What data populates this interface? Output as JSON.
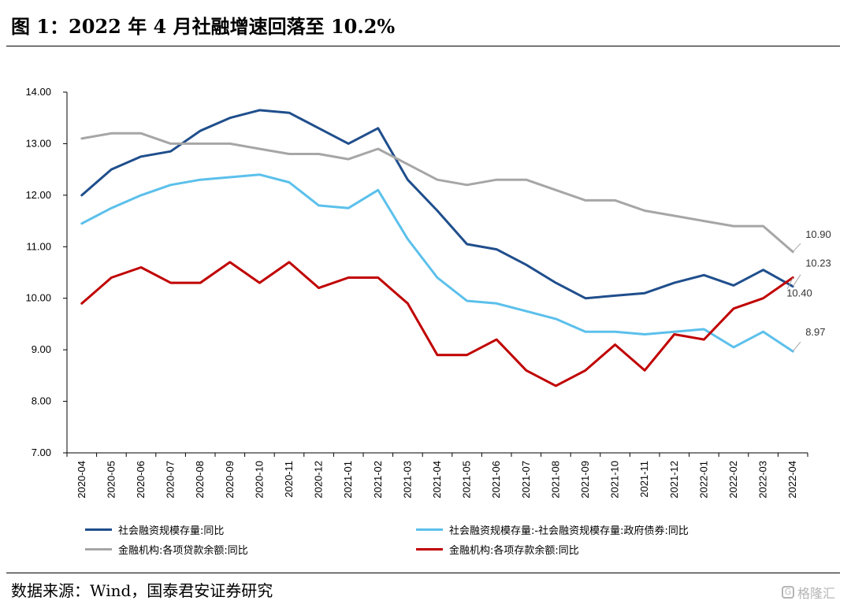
{
  "title": "图 1：2022 年 4 月社融增速回落至 10.2%",
  "source": "数据来源：Wind，国泰君安证券研究",
  "watermark": "格隆汇",
  "chart_data": {
    "type": "line",
    "categories": [
      "2020-04",
      "2020-05",
      "2020-06",
      "2020-07",
      "2020-08",
      "2020-09",
      "2020-10",
      "2020-11",
      "2020-12",
      "2021-01",
      "2021-02",
      "2021-03",
      "2021-04",
      "2021-05",
      "2021-06",
      "2021-07",
      "2021-08",
      "2021-09",
      "2021-10",
      "2021-11",
      "2021-12",
      "2022-01",
      "2022-02",
      "2022-03",
      "2022-04"
    ],
    "ylim": [
      7.0,
      14.0
    ],
    "yticks": [
      "7.00",
      "8.00",
      "9.00",
      "10.00",
      "11.00",
      "12.00",
      "13.00",
      "14.00"
    ],
    "grid": false,
    "legend_position": "bottom",
    "series": [
      {
        "name": "社会融资规模存量:同比",
        "color": "#1F4E8C",
        "values": [
          12.0,
          12.5,
          12.75,
          12.85,
          13.25,
          13.5,
          13.65,
          13.6,
          13.3,
          13.0,
          13.3,
          12.3,
          11.7,
          11.05,
          10.95,
          10.65,
          10.3,
          10.0,
          10.05,
          10.1,
          10.3,
          10.45,
          10.25,
          10.55,
          10.23
        ]
      },
      {
        "name": "社会融资规模存量:-社会融资规模存量:政府债券:同比",
        "color": "#5BC0EB",
        "values": [
          11.45,
          11.75,
          12.0,
          12.2,
          12.3,
          12.35,
          12.4,
          12.25,
          11.8,
          11.75,
          12.1,
          11.15,
          10.4,
          9.95,
          9.9,
          9.75,
          9.6,
          9.35,
          9.35,
          9.3,
          9.35,
          9.4,
          9.05,
          9.35,
          8.97
        ]
      },
      {
        "name": "金融机构:各项贷款余额:同比",
        "color": "#A6A6A6",
        "values": [
          13.1,
          13.2,
          13.2,
          13.0,
          13.0,
          13.0,
          12.9,
          12.8,
          12.8,
          12.7,
          12.9,
          12.6,
          12.3,
          12.2,
          12.3,
          12.3,
          12.1,
          11.9,
          11.9,
          11.7,
          11.6,
          11.5,
          11.4,
          11.4,
          10.9
        ]
      },
      {
        "name": "金融机构:各项存款余额:同比",
        "color": "#C00000",
        "values": [
          9.9,
          10.4,
          10.6,
          10.3,
          10.3,
          10.7,
          10.3,
          10.7,
          10.2,
          10.4,
          10.4,
          9.9,
          8.9,
          8.9,
          9.2,
          8.6,
          8.3,
          8.6,
          9.1,
          8.6,
          9.3,
          9.2,
          9.8,
          10.0,
          10.4
        ]
      }
    ],
    "annotations": [
      {
        "text": "10.90",
        "series": 2
      },
      {
        "text": "10.23",
        "series": 0
      },
      {
        "text": "10.40",
        "series": 3
      },
      {
        "text": "8.97",
        "series": 1
      }
    ]
  }
}
